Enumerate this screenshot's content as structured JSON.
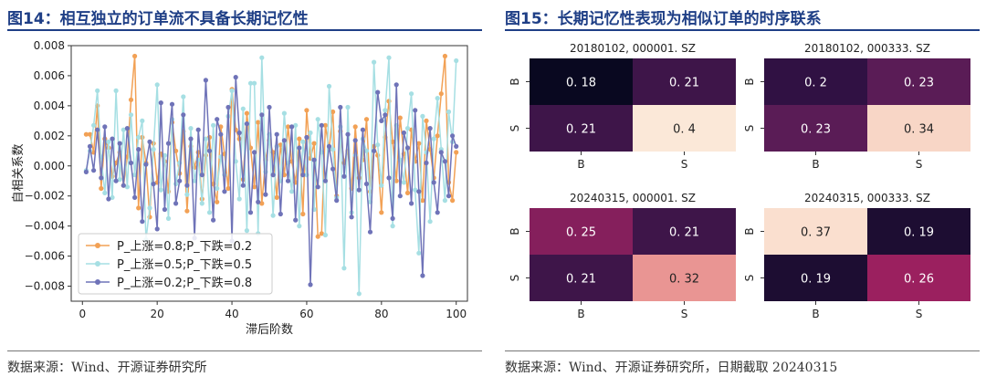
{
  "left_panel": {
    "title": "图14：相互独立的订单流不具备长期记忆性",
    "source": "数据来源：Wind、开源证券研究所"
  },
  "right_panel": {
    "title": "图15：长期记忆性表现为相似订单的时序联系",
    "source": "数据来源：Wind、开源证券研究所，日期截取 20240315"
  },
  "colors": {
    "title_blue": "#1f3f86",
    "series_orange": "#f2a155",
    "series_cyan": "#a6dfe3",
    "series_purple": "#6f73b8"
  },
  "chart_data": [
    {
      "type": "line",
      "xlabel": "滞后阶数",
      "ylabel": "自相关系数",
      "xlim": [
        -3,
        103
      ],
      "ylim": [
        -0.009,
        0.008
      ],
      "xticks": [
        "0",
        "20",
        "40",
        "60",
        "80",
        "100"
      ],
      "yticks": [
        "0.008",
        "0.006",
        "0.004",
        "0.002",
        "0.000",
        "−0.002",
        "−0.004",
        "−0.006",
        "−0.008"
      ],
      "grid": false,
      "legend_position": "lower-left",
      "x": [
        1,
        2,
        3,
        4,
        5,
        6,
        7,
        8,
        9,
        10,
        11,
        12,
        13,
        14,
        15,
        16,
        17,
        18,
        19,
        20,
        21,
        22,
        23,
        24,
        25,
        26,
        27,
        28,
        29,
        30,
        31,
        32,
        33,
        34,
        35,
        36,
        37,
        38,
        39,
        40,
        41,
        42,
        43,
        44,
        45,
        46,
        47,
        48,
        49,
        50,
        51,
        52,
        53,
        54,
        55,
        56,
        57,
        58,
        59,
        60,
        61,
        62,
        63,
        64,
        65,
        66,
        67,
        68,
        69,
        70,
        71,
        72,
        73,
        74,
        75,
        76,
        77,
        78,
        79,
        80,
        81,
        82,
        83,
        84,
        85,
        86,
        87,
        88,
        89,
        90,
        91,
        92,
        93,
        94,
        95,
        96,
        97,
        98,
        99,
        100
      ],
      "series": [
        {
          "name": "P_上涨=0.8;P_下跌=0.2",
          "color": "#f2a155",
          "values": [
            0.0021,
            0.0021,
            0.0009,
            0.004,
            -0.0015,
            0.0018,
            0.0012,
            -0.0007,
            0.0002,
            0.0009,
            -0.0013,
            0.0006,
            0.0044,
            0.0073,
            -0.0028,
            0.0019,
            0.0002,
            -0.0034,
            0.0015,
            -0.0011,
            0.0008,
            0.0003,
            -0.0017,
            0.0029,
            0.001,
            -0.0005,
            0.0023,
            -0.003,
            0.0013,
            -0.0001,
            0.0009,
            -0.0022,
            0.0007,
            0.0019,
            -0.0012,
            -0.0024,
            0.0026,
            0.0008,
            -0.0015,
            0.0051,
            0.0024,
            0.0018,
            -0.0009,
            0.0035,
            0.0012,
            -0.0014,
            0.0029,
            -0.0025,
            0.0004,
            0.0017,
            0.0009,
            -0.0021,
            0.0014,
            -0.0006,
            0.0026,
            0.0003,
            -0.0011,
            0.0018,
            -0.0032,
            0.0037,
            0.0005,
            0.0015,
            -0.0047,
            -0.0045,
            0.0027,
            0.0011,
            0.0036,
            -0.002,
            0.0023,
            0.0002,
            0.001,
            -0.0015,
            0.0026,
            -0.0008,
            0.0004,
            0.0031,
            -0.0017,
            0.0013,
            0.0007,
            -0.0031,
            0.0019,
            0.0043,
            0.0016,
            -0.001,
            0.0032,
            0.0008,
            -0.0018,
            0.0024,
            0.0003,
            0.0015,
            -0.0023,
            0.003,
            0.0011,
            -0.0008,
            0.002,
            0.0048,
            0.0073,
            -0.0011,
            -0.0023,
            0.0009
          ]
        },
        {
          "name": "P_上涨=0.5;P_下跌=0.5",
          "color": "#a6dfe3",
          "values": [
            -0.0003,
            0.001,
            0.0027,
            0.005,
            0.0006,
            -0.0018,
            0.0016,
            -0.0021,
            0.005,
            -0.0009,
            0.0024,
            -0.0014,
            0.0034,
            -0.0006,
            0.0019,
            0.003,
            -0.0049,
            -0.0028,
            0.0011,
            0.0054,
            -0.0016,
            0.0007,
            -0.0035,
            0.0031,
            -0.0012,
            0.0002,
            0.0046,
            -0.0019,
            0.0025,
            -0.001,
            0.0004,
            -0.0025,
            0.0018,
            -0.0031,
            0.0027,
            -0.0015,
            0.0006,
            -0.0006,
            0.0033,
            0.005,
            0.0003,
            -0.0022,
            0.0038,
            -0.0043,
            0.0055,
            0.0055,
            -0.0045,
            0.0072,
            -0.0004,
            0.0021,
            -0.0033,
            0.0013,
            -0.001,
            0.0035,
            0.0002,
            -0.0017,
            0.0027,
            -0.004,
            0.0016,
            -0.0006,
            0.0022,
            -0.0029,
            0.0031,
            0.0009,
            -0.0046,
            0.0053,
            0.0011,
            -0.0021,
            0.0026,
            -0.0068,
            0.0039,
            -0.0031,
            0.0007,
            -0.0085,
            0.0018,
            0.001,
            -0.0024,
            0.0069,
            0.0014,
            -0.0013,
            0.0037,
            0.0072,
            -0.004,
            0.0027,
            0.0004,
            -0.0011,
            0.0025,
            0.0048,
            -0.0016,
            -0.0058,
            0.0033,
            0.0009,
            -0.0037,
            0.0018,
            0.0045,
            0.0011,
            -0.0023,
            0.0036,
            0.0016,
            0.007
          ]
        },
        {
          "name": "P_上涨=0.2;P_下跌=0.8",
          "color": "#6f73b8",
          "values": [
            -0.0004,
            0.0013,
            -0.0003,
            0.0024,
            -0.0008,
            0.0026,
            -0.0022,
            0.0018,
            -0.001,
            0.0015,
            -0.0013,
            0.0025,
            0.0002,
            -0.0021,
            0.0011,
            -0.0037,
            0.0001,
            0.0016,
            -0.0012,
            -0.0042,
            0.0042,
            -0.0029,
            0.0015,
            0.0041,
            -0.0025,
            -0.001,
            0.0034,
            -0.0013,
            0.0018,
            -0.0048,
            0.0024,
            -0.0006,
            0.0057,
            0.001,
            -0.0036,
            0.0031,
            0.0021,
            -0.0017,
            0.0039,
            -0.005,
            0.0059,
            0.0022,
            -0.0013,
            0.0028,
            -0.0031,
            0.0009,
            -0.0024,
            0.0034,
            -0.0019,
            0.0039,
            -0.0006,
            0.0021,
            -0.0032,
            0.0017,
            -0.001,
            0.0026,
            -0.0036,
            0.0012,
            -0.0006,
            0.0019,
            -0.0079,
            0.0004,
            -0.0014,
            0.0027,
            -0.001,
            0.0013,
            -0.0002,
            -0.0023,
            0.0039,
            -0.0007,
            0.0021,
            -0.0034,
            0.0017,
            -0.0016,
            0.0024,
            -0.0012,
            -0.0044,
            0.001,
            0.0049,
            0.003,
            0.0034,
            -0.0008,
            -0.0035,
            0.0054,
            -0.002,
            0.0022,
            0.0012,
            -0.0025,
            0.0037,
            -0.0017,
            -0.0073,
            0.0002,
            0.0025,
            -0.0011,
            -0.0031,
            0.0009,
            0.0003,
            -0.002,
            0.002,
            0.0013
          ]
        }
      ]
    },
    {
      "type": "heatmap",
      "title": "20180102, 000001. SZ",
      "row_labels": [
        "B",
        "S"
      ],
      "col_labels": [
        "B",
        "S"
      ],
      "values": [
        [
          0.18,
          0.21
        ],
        [
          0.21,
          0.4
        ]
      ],
      "cell_labels": [
        [
          "0. 18",
          "0. 21"
        ],
        [
          "0. 21",
          "0. 4"
        ]
      ]
    },
    {
      "type": "heatmap",
      "title": "20180102, 000333. SZ",
      "row_labels": [
        "B",
        "S"
      ],
      "col_labels": [
        "B",
        "S"
      ],
      "values": [
        [
          0.2,
          0.23
        ],
        [
          0.23,
          0.34
        ]
      ],
      "cell_labels": [
        [
          "0. 2",
          "0. 23"
        ],
        [
          "0. 23",
          "0. 34"
        ]
      ]
    },
    {
      "type": "heatmap",
      "title": "20240315, 000001. SZ",
      "row_labels": [
        "B",
        "S"
      ],
      "col_labels": [
        "B",
        "S"
      ],
      "values": [
        [
          0.25,
          0.21
        ],
        [
          0.21,
          0.32
        ]
      ],
      "cell_labels": [
        [
          "0. 25",
          "0. 21"
        ],
        [
          "0. 21",
          "0. 32"
        ]
      ]
    },
    {
      "type": "heatmap",
      "title": "20240315, 000333. SZ",
      "row_labels": [
        "B",
        "S"
      ],
      "col_labels": [
        "B",
        "S"
      ],
      "values": [
        [
          0.37,
          0.19
        ],
        [
          0.19,
          0.26
        ]
      ],
      "cell_labels": [
        [
          "0. 37",
          "0. 19"
        ],
        [
          "0. 19",
          "0. 26"
        ]
      ]
    }
  ]
}
